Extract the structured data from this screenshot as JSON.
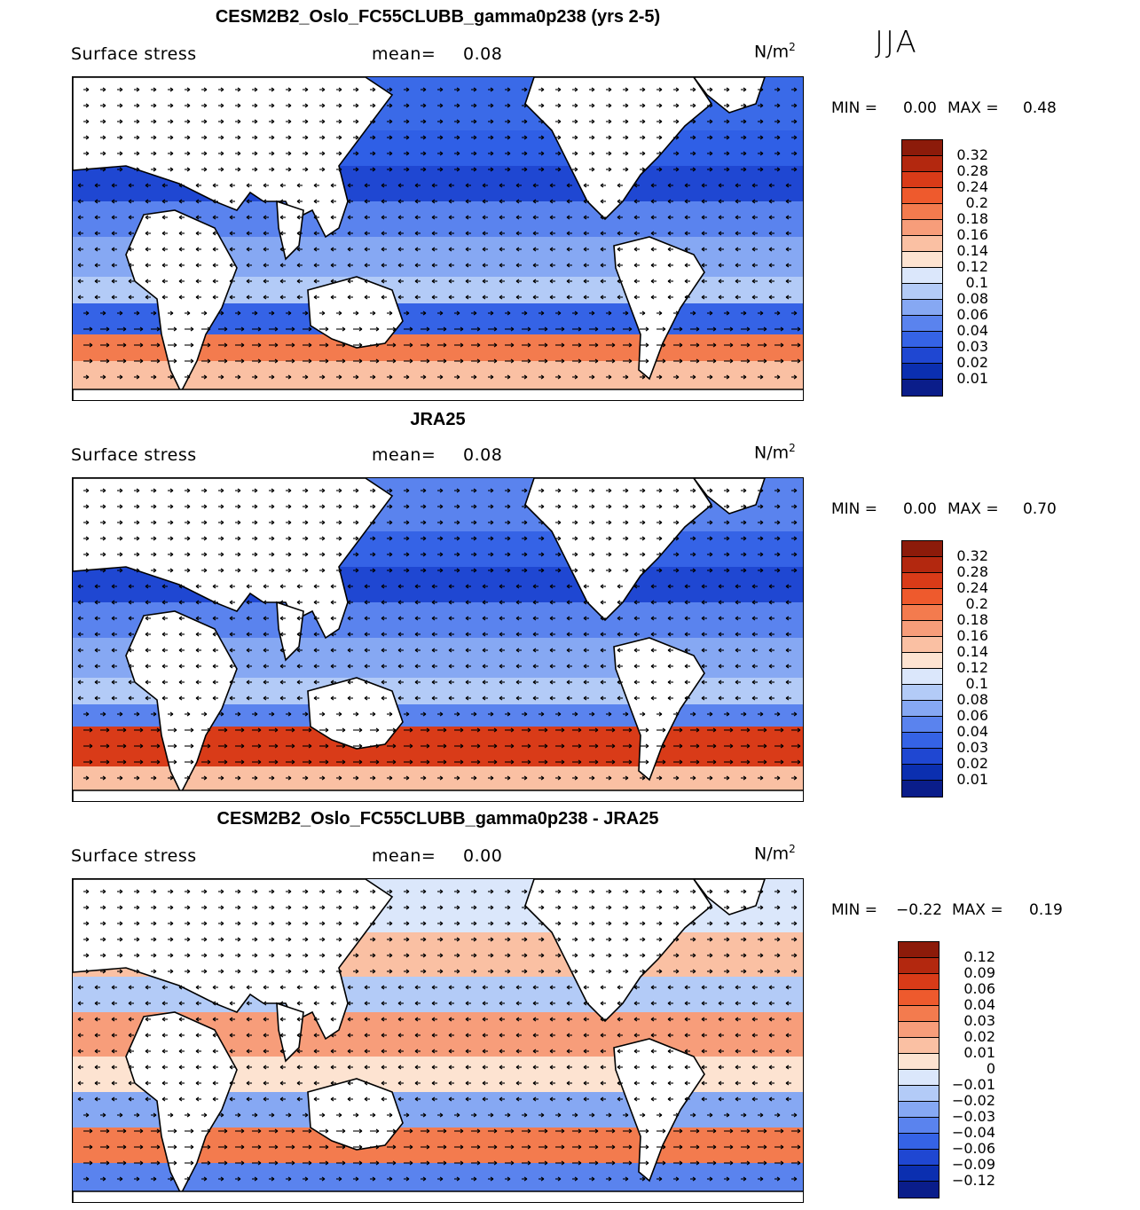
{
  "season": "JJA",
  "colors": {
    "scale": [
      "#0a1f8f",
      "#0b2fb4",
      "#1745d6",
      "#2f5fe6",
      "#4c7df0",
      "#7aa0f5",
      "#a7c3f8",
      "#d9e6fb",
      "#fbe6d8",
      "#f9c6a9",
      "#f59e7a",
      "#f0744f",
      "#e84d26",
      "#c93217",
      "#8c1b0a"
    ],
    "land": "#ffffff",
    "coast": "#000000",
    "arrow": "#000000"
  },
  "panels": [
    {
      "title": "CESM2B2_Oslo_FC55CLUBB_gamma0p238 (yrs 2-5)",
      "variable": "Surface stress",
      "mean_label": "mean=",
      "mean_value": "0.08",
      "units": "N/m",
      "units_exp": "2",
      "min_label": "MIN =",
      "min_value": "0.00",
      "max_label": "MAX =",
      "max_value": "0.48",
      "colorbar_labels": [
        "0.32",
        "0.28",
        "0.24",
        "0.2",
        "0.18",
        "0.16",
        "0.14",
        "0.12",
        "0.1",
        "0.08",
        "0.06",
        "0.04",
        "0.03",
        "0.02",
        "0.01"
      ],
      "colorbar_colors": [
        "#8c1b0a",
        "#b3280f",
        "#d93b18",
        "#ee5a2d",
        "#f37b4e",
        "#f79d7a",
        "#fac0a3",
        "#fde3d1",
        "#dbe7fb",
        "#b3cbf7",
        "#86a8f3",
        "#5a83ee",
        "#3563e6",
        "#1f47d2",
        "#0b2fb0",
        "#0a1d8a"
      ]
    },
    {
      "title": "JRA25",
      "variable": "Surface stress",
      "mean_label": "mean=",
      "mean_value": "0.08",
      "units": "N/m",
      "units_exp": "2",
      "min_label": "MIN =",
      "min_value": "0.00",
      "max_label": "MAX =",
      "max_value": "0.70",
      "colorbar_labels": [
        "0.32",
        "0.28",
        "0.24",
        "0.2",
        "0.18",
        "0.16",
        "0.14",
        "0.12",
        "0.1",
        "0.08",
        "0.06",
        "0.04",
        "0.03",
        "0.02",
        "0.01"
      ],
      "colorbar_colors": [
        "#8c1b0a",
        "#b3280f",
        "#d93b18",
        "#ee5a2d",
        "#f37b4e",
        "#f79d7a",
        "#fac0a3",
        "#fde3d1",
        "#dbe7fb",
        "#b3cbf7",
        "#86a8f3",
        "#5a83ee",
        "#3563e6",
        "#1f47d2",
        "#0b2fb0",
        "#0a1d8a"
      ]
    },
    {
      "title": "CESM2B2_Oslo_FC55CLUBB_gamma0p238 - JRA25",
      "variable": "Surface stress",
      "mean_label": "mean=",
      "mean_value": "0.00",
      "units": "N/m",
      "units_exp": "2",
      "min_label": "MIN =",
      "min_value": "−0.22",
      "max_label": "MAX =",
      "max_value": "0.19",
      "colorbar_labels": [
        "0.12",
        "0.09",
        "0.06",
        "0.04",
        "0.03",
        "0.02",
        "0.01",
        "0",
        "−0.01",
        "−0.02",
        "−0.03",
        "−0.04",
        "−0.06",
        "−0.09",
        "−0.12"
      ],
      "colorbar_colors": [
        "#8c1b0a",
        "#b3280f",
        "#d93b18",
        "#ee5a2d",
        "#f37b4e",
        "#f79d7a",
        "#fac0a3",
        "#fde3d1",
        "#dbe7fb",
        "#b3cbf7",
        "#86a8f3",
        "#5a83ee",
        "#3563e6",
        "#1f47d2",
        "#0b2fb0",
        "#0a1d8a"
      ]
    }
  ]
}
